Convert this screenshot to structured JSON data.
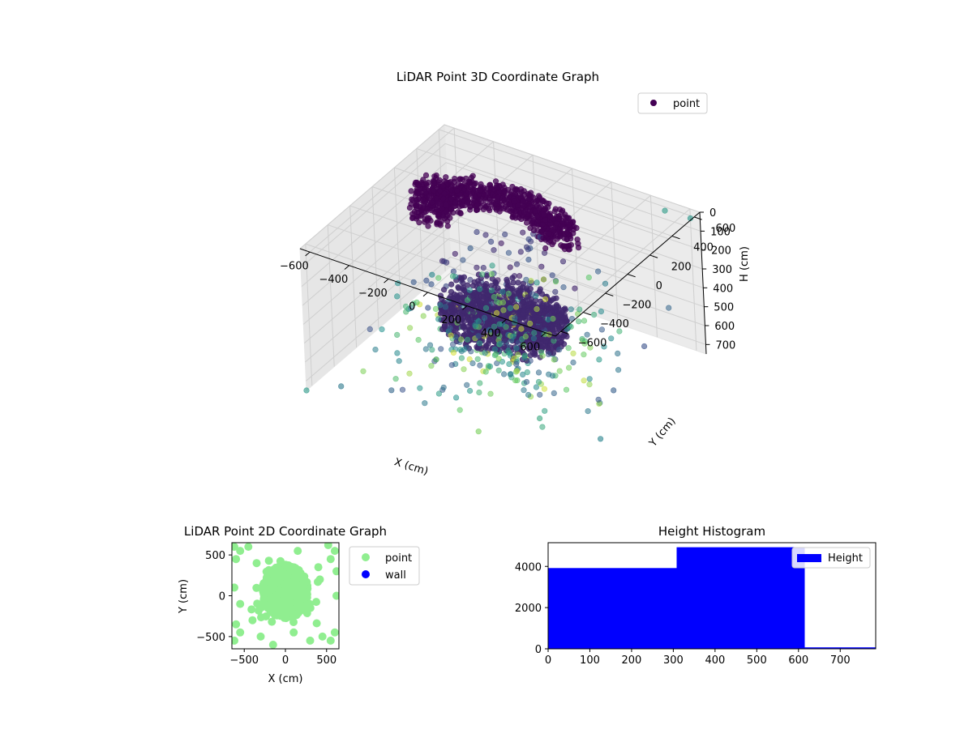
{
  "chart_data": [
    {
      "type": "scatter",
      "title": "LiDAR Point 3D Coordinate Graph",
      "xlabel": "X (cm)",
      "ylabel": "Y (cm)",
      "zlabel": "H (cm)",
      "x_ticks": [
        -600,
        -400,
        -200,
        0,
        200,
        400,
        600
      ],
      "y_ticks": [
        -600,
        -400,
        -200,
        0,
        200,
        400,
        600
      ],
      "z_ticks": [
        0,
        100,
        200,
        300,
        400,
        500,
        600,
        700
      ],
      "xlim": [
        -650,
        650
      ],
      "ylim": [
        -650,
        650
      ],
      "zlim": [
        0,
        750
      ],
      "z_inverted": true,
      "legend": {
        "placement": "top-right",
        "entries": [
          {
            "name": "point",
            "color": "#440154"
          }
        ]
      },
      "colormap": "viridis",
      "grid": true,
      "clusters": [
        {
          "description": "dense canopy ring",
          "center_x": -150,
          "center_y": 200,
          "radius": 380,
          "h_range": [
            0,
            300
          ],
          "color": "#440154"
        },
        {
          "description": "dense core blob",
          "center_x": 0,
          "center_y": 0,
          "radius": 300,
          "h_range": [
            300,
            600
          ],
          "color": "#46327e"
        }
      ],
      "scattered_points": [
        {
          "x": -650,
          "y": -650,
          "h": 750
        },
        {
          "x": -500,
          "y": -600,
          "h": 700
        },
        {
          "x": 600,
          "y": 650,
          "h": 50
        },
        {
          "x": 500,
          "y": 600,
          "h": 20
        },
        {
          "x": -600,
          "y": 400,
          "h": 650
        },
        {
          "x": 650,
          "y": -300,
          "h": 720
        },
        {
          "x": -300,
          "y": -500,
          "h": 700
        },
        {
          "x": 200,
          "y": -600,
          "h": 690
        },
        {
          "x": 400,
          "y": -400,
          "h": 650
        },
        {
          "x": -450,
          "y": 100,
          "h": 620
        },
        {
          "x": 600,
          "y": 200,
          "h": 500
        },
        {
          "x": 550,
          "y": 0,
          "h": 650
        }
      ]
    },
    {
      "type": "scatter",
      "title": "LiDAR Point 2D Coordinate Graph",
      "xlabel": "X (cm)",
      "ylabel": "Y (cm)",
      "x_ticks": [
        -500,
        0,
        500
      ],
      "y_ticks": [
        -500,
        0,
        500
      ],
      "xlim": [
        -650,
        650
      ],
      "ylim": [
        -650,
        650
      ],
      "series": [
        {
          "name": "point",
          "color": "#90ee90"
        },
        {
          "name": "wall",
          "color": "#0000ff"
        }
      ],
      "main_cluster": {
        "center_x": 0,
        "center_y": 50,
        "radius_x": 280,
        "radius_y": 330
      },
      "outer_points": [
        [
          -620,
          600
        ],
        [
          -550,
          550
        ],
        [
          -600,
          450
        ],
        [
          -450,
          600
        ],
        [
          520,
          620
        ],
        [
          600,
          550
        ],
        [
          550,
          450
        ],
        [
          620,
          300
        ],
        [
          -600,
          -350
        ],
        [
          -550,
          -450
        ],
        [
          -620,
          -550
        ],
        [
          550,
          -550
        ],
        [
          600,
          -450
        ],
        [
          450,
          -500
        ],
        [
          -400,
          -300
        ],
        [
          -300,
          -500
        ],
        [
          300,
          -550
        ],
        [
          -620,
          100
        ],
        [
          -550,
          -100
        ],
        [
          620,
          0
        ],
        [
          400,
          350
        ],
        [
          -350,
          400
        ],
        [
          150,
          550
        ],
        [
          -150,
          -600
        ],
        [
          100,
          -450
        ]
      ],
      "legend": {
        "placement": "outside-right"
      }
    },
    {
      "type": "bar",
      "title": "Height Histogram",
      "x_ticks": [
        0,
        100,
        200,
        300,
        400,
        500,
        600,
        700
      ],
      "y_ticks": [
        0,
        2000,
        4000
      ],
      "xlim": [
        0,
        785
      ],
      "ylim": [
        0,
        5150
      ],
      "bins": [
        {
          "start": 0,
          "end": 308,
          "count": 3920
        },
        {
          "start": 308,
          "end": 615,
          "count": 4930
        },
        {
          "start": 615,
          "end": 785,
          "count": 70
        }
      ],
      "color": "#0000ff",
      "legend": {
        "placement": "top-right",
        "entries": [
          {
            "name": "Height",
            "color": "#0000ff"
          }
        ]
      }
    }
  ]
}
